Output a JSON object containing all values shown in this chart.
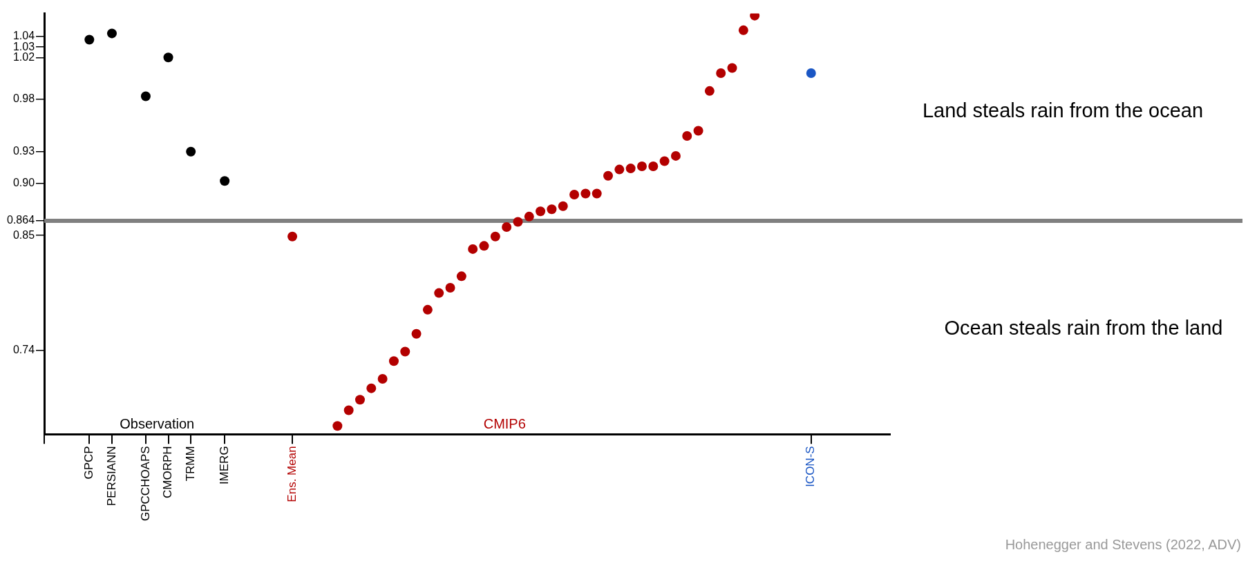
{
  "chart_data": {
    "type": "scatter",
    "marker": "circle",
    "grid": false,
    "legend": false,
    "ylim": [
      0.66,
      1.062
    ],
    "categories": [
      null,
      null,
      null,
      null,
      "GPCP",
      null,
      "PERSIANN",
      null,
      null,
      "GPCCHOAPS",
      null,
      "CMORPH",
      null,
      "TRMM",
      null,
      null,
      "IMERG",
      null,
      null,
      null,
      null,
      null,
      "Ens. Mean",
      null,
      null,
      null,
      null,
      null,
      null,
      null,
      null,
      null,
      null,
      null,
      null,
      null,
      null,
      null,
      null,
      null,
      null,
      null,
      null,
      null,
      null,
      null,
      null,
      null,
      null,
      null,
      null,
      null,
      null,
      null,
      null,
      null,
      null,
      null,
      null,
      null,
      null,
      null,
      null,
      null,
      null,
      null,
      null,
      null,
      "ICON-S",
      null,
      null,
      null,
      null,
      null,
      null,
      null
    ],
    "yticks": [
      0.74,
      0.85,
      0.864,
      {
        "value": 0.9,
        "label": "0.90"
      },
      0.93,
      0.98,
      1.02,
      1.03,
      1.04
    ],
    "series": [
      {
        "name": "Observation",
        "color": "#000000",
        "values": [
          null,
          null,
          null,
          null,
          1.037,
          null,
          1.043,
          null,
          null,
          0.983,
          null,
          1.02,
          null,
          0.93,
          null,
          null,
          0.902,
          null,
          null,
          null,
          null,
          null,
          null,
          null,
          null,
          null,
          null,
          null,
          null,
          null,
          null,
          null,
          null,
          null,
          null,
          null,
          null,
          null,
          null,
          null,
          null,
          null,
          null,
          null,
          null,
          null,
          null,
          null,
          null,
          null,
          null,
          null,
          null,
          null,
          null,
          null,
          null,
          null,
          null,
          null,
          null,
          null,
          null,
          null,
          null,
          null,
          null,
          null,
          null,
          null,
          null,
          null,
          null,
          null,
          null,
          null
        ]
      },
      {
        "color": "#b30000",
        "values": [
          null,
          null,
          null,
          null,
          null,
          null,
          null,
          null,
          null,
          null,
          null,
          null,
          null,
          null,
          null,
          null,
          null,
          null,
          null,
          null,
          null,
          null,
          0.849,
          null,
          null,
          null,
          null,
          null,
          null,
          null,
          null,
          null,
          null,
          null,
          null,
          null,
          null,
          null,
          null,
          null,
          null,
          null,
          null,
          null,
          null,
          null,
          null,
          null,
          null,
          null,
          null,
          null,
          null,
          null,
          null,
          null,
          null,
          null,
          null,
          null,
          null,
          null,
          null,
          null,
          null,
          null,
          null,
          null,
          null,
          null,
          null,
          null,
          null,
          null,
          null,
          null
        ]
      },
      {
        "name": "CMIP6",
        "color": "#b30000",
        "values": [
          null,
          null,
          null,
          null,
          null,
          null,
          null,
          null,
          null,
          null,
          null,
          null,
          null,
          null,
          null,
          null,
          null,
          null,
          null,
          null,
          null,
          null,
          null,
          null,
          null,
          null,
          0.668,
          0.683,
          0.693,
          0.704,
          0.713,
          0.73,
          0.739,
          0.756,
          0.779,
          0.795,
          0.8,
          0.811,
          0.837,
          0.84,
          0.849,
          0.858,
          0.863,
          0.868,
          0.873,
          0.875,
          0.878,
          0.889,
          0.89,
          0.89,
          0.907,
          0.913,
          0.914,
          0.916,
          0.916,
          0.921,
          0.926,
          0.945,
          0.95,
          0.988,
          1.005,
          1.01,
          1.046,
          1.06,
          null,
          null,
          null,
          null,
          null,
          null,
          null,
          null,
          null,
          null,
          null,
          null
        ]
      },
      {
        "color": "#1a56c4",
        "values": [
          null,
          null,
          null,
          null,
          null,
          null,
          null,
          null,
          null,
          null,
          null,
          null,
          null,
          null,
          null,
          null,
          null,
          null,
          null,
          null,
          null,
          null,
          null,
          null,
          null,
          null,
          null,
          null,
          null,
          null,
          null,
          null,
          null,
          null,
          null,
          null,
          null,
          null,
          null,
          null,
          null,
          null,
          null,
          null,
          null,
          null,
          null,
          null,
          null,
          null,
          null,
          null,
          null,
          null,
          null,
          null,
          null,
          null,
          null,
          null,
          null,
          null,
          null,
          null,
          null,
          null,
          null,
          null,
          1.005,
          null,
          null,
          null,
          null,
          null,
          null,
          null
        ]
      }
    ],
    "ref_lines": [
      {
        "axis": "y",
        "value": 0.864,
        "color": "#808080"
      }
    ],
    "annotations": [
      "Land steals rain from the ocean",
      "Ocean steals rain from the land",
      "Hohenegger and Stevens (2022, ADV)"
    ]
  }
}
